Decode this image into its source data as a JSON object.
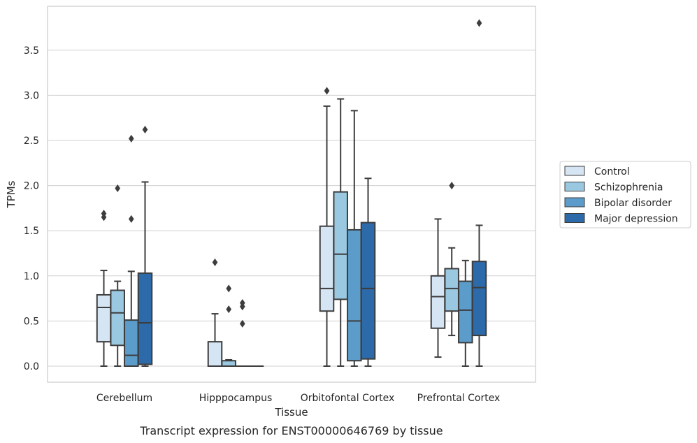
{
  "caption": "Transcript expression for ENST00000646769 by tissue",
  "chart_data": {
    "type": "boxplot",
    "xlabel": "Tissue",
    "ylabel": "TPMs",
    "ylim": [
      -0.18,
      3.98
    ],
    "yticks": [
      "0.0",
      "0.5",
      "1.0",
      "1.5",
      "2.0",
      "2.5",
      "3.0",
      "3.5"
    ],
    "grid": "horizontal",
    "legend_position": "right",
    "categories": [
      "Cerebellum",
      "Hipppocampus",
      "Orbitofontal Cortex",
      "Prefrontal Cortex"
    ],
    "series": [
      {
        "name": "Control",
        "color": "#d6e5f4",
        "boxes": [
          {
            "whislo": 0.0,
            "q1": 0.27,
            "med": 0.65,
            "q3": 0.79,
            "whishi": 1.06,
            "fliers": [
              1.65,
              1.69
            ]
          },
          {
            "whislo": 0.0,
            "q1": 0.0,
            "med": 0.0,
            "q3": 0.27,
            "whishi": 0.58,
            "fliers": [
              1.15
            ]
          },
          {
            "whislo": 0.0,
            "q1": 0.61,
            "med": 0.86,
            "q3": 1.55,
            "whishi": 2.88,
            "fliers": [
              3.05
            ]
          },
          {
            "whislo": 0.1,
            "q1": 0.42,
            "med": 0.77,
            "q3": 1.0,
            "whishi": 1.63,
            "fliers": []
          }
        ]
      },
      {
        "name": "Schizophrenia",
        "color": "#9ac8e0",
        "boxes": [
          {
            "whislo": 0.0,
            "q1": 0.23,
            "med": 0.59,
            "q3": 0.84,
            "whishi": 0.94,
            "fliers": [
              1.97
            ]
          },
          {
            "whislo": 0.0,
            "q1": 0.0,
            "med": 0.0,
            "q3": 0.06,
            "whishi": 0.07,
            "fliers": [
              0.63,
              0.86
            ]
          },
          {
            "whislo": 0.0,
            "q1": 0.74,
            "med": 1.24,
            "q3": 1.93,
            "whishi": 2.96,
            "fliers": []
          },
          {
            "whislo": 0.34,
            "q1": 0.61,
            "med": 0.86,
            "q3": 1.08,
            "whishi": 1.31,
            "fliers": [
              2.0
            ]
          }
        ]
      },
      {
        "name": "Bipolar disorder",
        "color": "#5b9cca",
        "boxes": [
          {
            "whislo": 0.0,
            "q1": 0.0,
            "med": 0.12,
            "q3": 0.51,
            "whishi": 1.05,
            "fliers": [
              1.63,
              2.52
            ]
          },
          {
            "whislo": 0.0,
            "q1": 0.0,
            "med": 0.0,
            "q3": 0.0,
            "whishi": 0.0,
            "fliers": [
              0.47,
              0.66,
              0.7
            ]
          },
          {
            "whislo": 0.0,
            "q1": 0.06,
            "med": 0.5,
            "q3": 1.51,
            "whishi": 2.83,
            "fliers": []
          },
          {
            "whislo": 0.0,
            "q1": 0.26,
            "med": 0.62,
            "q3": 0.94,
            "whishi": 1.17,
            "fliers": []
          }
        ]
      },
      {
        "name": "Major depression",
        "color": "#2c6aa9",
        "boxes": [
          {
            "whislo": 0.0,
            "q1": 0.02,
            "med": 0.48,
            "q3": 1.03,
            "whishi": 2.04,
            "fliers": [
              2.62
            ]
          },
          {
            "whislo": 0.0,
            "q1": 0.0,
            "med": 0.0,
            "q3": 0.0,
            "whishi": 0.0,
            "fliers": []
          },
          {
            "whislo": 0.0,
            "q1": 0.08,
            "med": 0.86,
            "q3": 1.59,
            "whishi": 2.08,
            "fliers": []
          },
          {
            "whislo": 0.0,
            "q1": 0.34,
            "med": 0.87,
            "q3": 1.16,
            "whishi": 1.56,
            "fliers": [
              3.8
            ]
          }
        ]
      }
    ]
  }
}
